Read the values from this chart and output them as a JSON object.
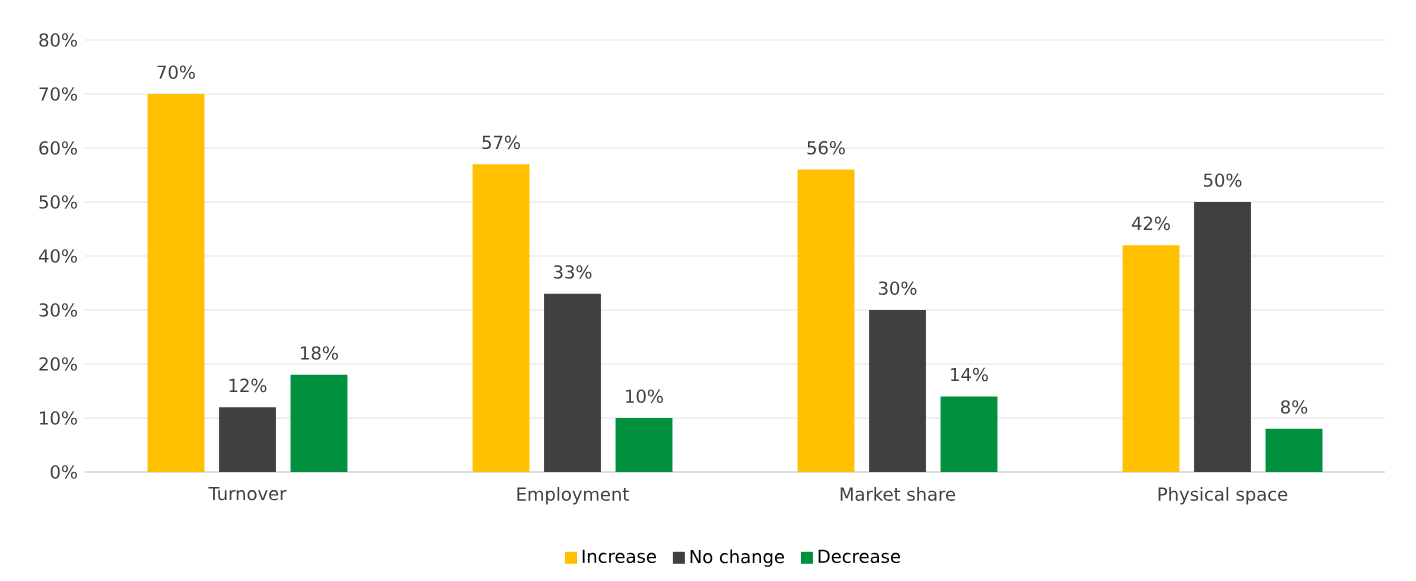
{
  "chart_data": {
    "type": "bar",
    "categories": [
      "Turnover",
      "Employment",
      "Market share",
      "Physical space"
    ],
    "series": [
      {
        "name": "Increase",
        "color": "#ffc000",
        "values": [
          70,
          57,
          56,
          42
        ],
        "value_labels": [
          "70%",
          "57%",
          "56%",
          "42%"
        ]
      },
      {
        "name": "No change",
        "color": "#404040",
        "values": [
          12,
          33,
          30,
          50
        ],
        "value_labels": [
          "12%",
          "33%",
          "30%",
          "50%"
        ]
      },
      {
        "name": "Decrease",
        "color": "#00913f",
        "values": [
          18,
          10,
          14,
          8
        ],
        "value_labels": [
          "18%",
          "10%",
          "14%",
          "8%"
        ]
      }
    ],
    "ylim": [
      0,
      80
    ],
    "yticks": [
      {
        "value": 0,
        "label": "0%"
      },
      {
        "value": 10,
        "label": "10%"
      },
      {
        "value": 20,
        "label": "20%"
      },
      {
        "value": 30,
        "label": "30%"
      },
      {
        "value": 40,
        "label": "40%"
      },
      {
        "value": 50,
        "label": "50%"
      },
      {
        "value": 60,
        "label": "60%"
      },
      {
        "value": 70,
        "label": "70%"
      },
      {
        "value": 80,
        "label": "80%"
      }
    ],
    "grid": "y",
    "legend": "bottom"
  }
}
